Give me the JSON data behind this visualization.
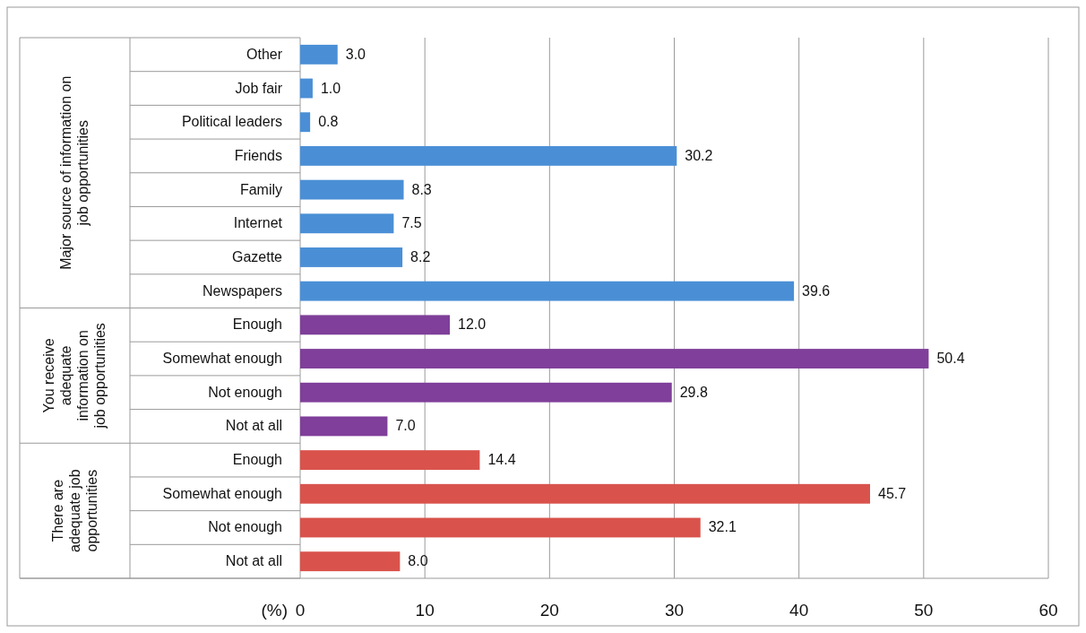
{
  "chart_data": {
    "type": "bar",
    "orientation": "horizontal",
    "xlabel": "(%)",
    "categories": [
      "Other",
      "Job fair",
      "Political leaders",
      "Friends",
      "Family",
      "Internet",
      "Gazette",
      "Newspapers",
      "Enough",
      "Somewhat enough",
      "Not enough",
      "Not at all",
      "Enough",
      "Somewhat enough",
      "Not enough",
      "Not at all"
    ],
    "values": [
      3.0,
      1.0,
      0.8,
      30.2,
      8.3,
      7.5,
      8.2,
      39.6,
      12.0,
      50.4,
      29.8,
      7.0,
      14.4,
      45.7,
      32.1,
      8.0
    ],
    "value_labels": [
      "3.0",
      "1.0",
      "0.8",
      "30.2",
      "8.3",
      "7.5",
      "8.2",
      "39.6",
      "12.0",
      "50.4",
      "29.8",
      "7.0",
      "14.4",
      "45.7",
      "32.1",
      "8.0"
    ],
    "colors": [
      "#4a8fd6",
      "#4a8fd6",
      "#4a8fd6",
      "#4a8fd6",
      "#4a8fd6",
      "#4a8fd6",
      "#4a8fd6",
      "#4a8fd6",
      "#7f3f9a",
      "#7f3f9a",
      "#7f3f9a",
      "#7f3f9a",
      "#d9534c",
      "#d9534c",
      "#d9534c",
      "#d9534c"
    ],
    "annotations": [
      "Major source of information on job opportunities",
      "You receive adequate information on job opportunities",
      "There are adequate job opportunities"
    ],
    "xlim": [
      0,
      60
    ],
    "xticks": [
      0,
      10,
      20,
      30,
      40,
      50,
      60
    ],
    "grid": "x"
  }
}
